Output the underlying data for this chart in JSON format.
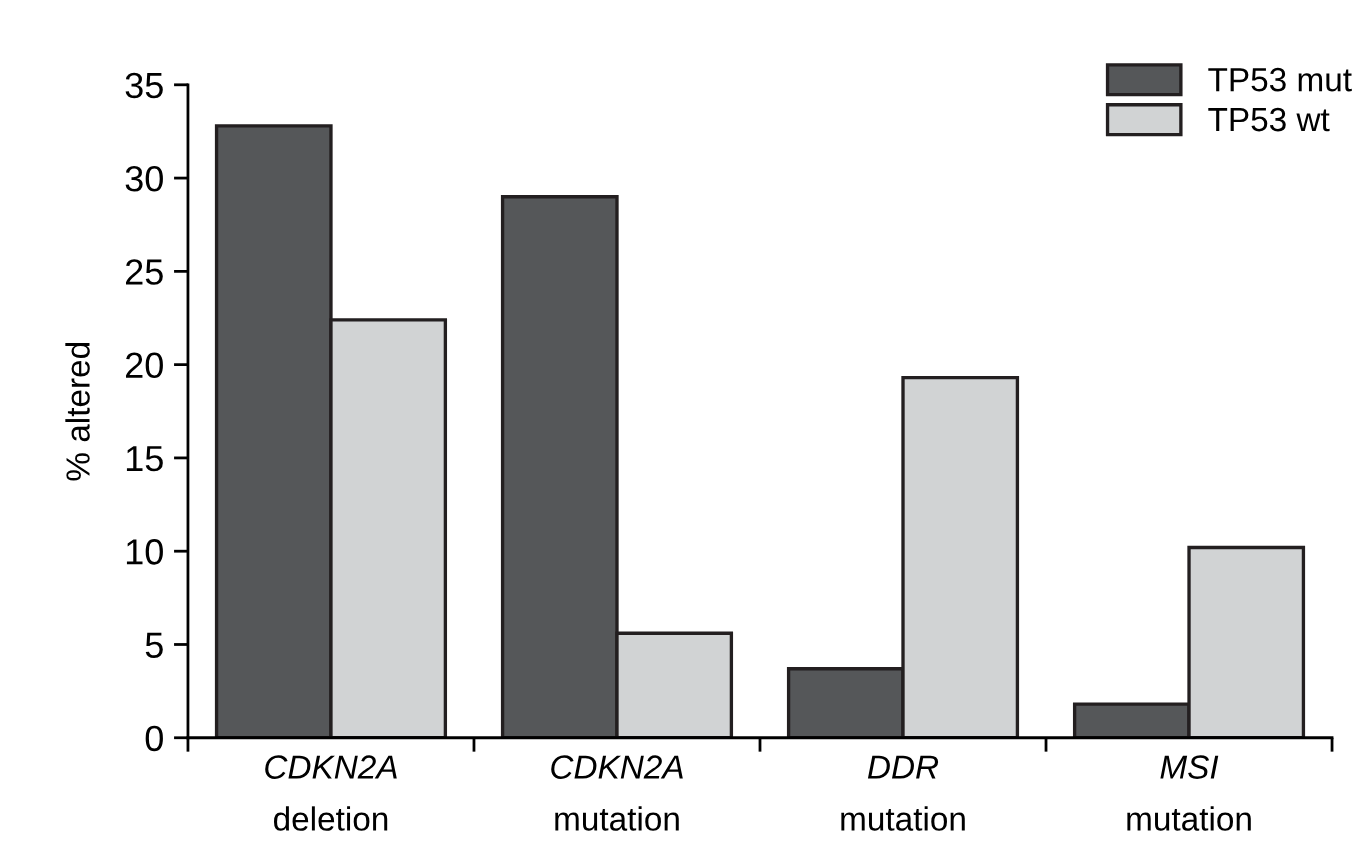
{
  "chart_data": {
    "type": "bar",
    "ylabel": "% altered",
    "categories": [
      "CDKN2A\ndeletion",
      "CDKN2A\nmutation",
      "DDR\nmutation",
      "MSI\nmutation"
    ],
    "series": [
      {
        "name": "TP53 mut",
        "color": "#555759",
        "values": [
          32.8,
          29.0,
          3.7,
          1.8
        ]
      },
      {
        "name": "TP53 wt",
        "color": "#d1d3d4",
        "values": [
          22.4,
          5.6,
          19.3,
          10.2
        ]
      }
    ],
    "ylim": [
      0,
      35
    ],
    "yticks": [
      0,
      5,
      10,
      15,
      20,
      25,
      30,
      35
    ],
    "grid": false,
    "legend": "top right"
  }
}
